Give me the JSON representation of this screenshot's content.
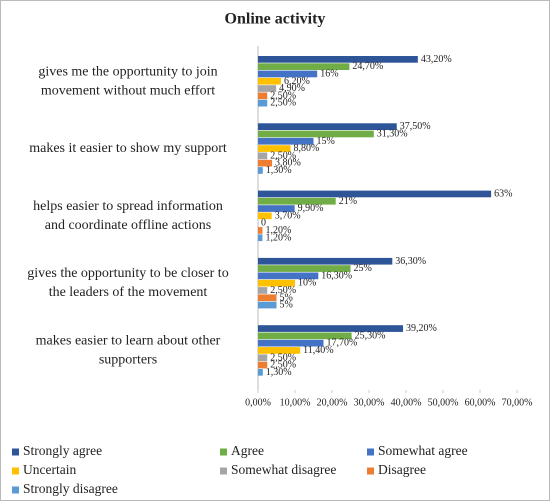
{
  "chart_data": {
    "type": "bar",
    "orientation": "horizontal",
    "title": "Online activity",
    "categories": [
      [
        "gives me the opportunity to join",
        "movement without much effort"
      ],
      [
        "makes it easier to show my support"
      ],
      [
        "helps easier to spread information",
        "and coordinate  offline actions"
      ],
      [
        "gives the opportunity to be closer to",
        "the leaders of the movement"
      ],
      [
        "makes easier to learn about other",
        "supporters"
      ]
    ],
    "series": [
      {
        "name": "Strongly agree",
        "color": "#2e5597",
        "values": [
          43.2,
          37.5,
          63,
          36.3,
          39.2
        ],
        "value_labels": [
          "43,20%",
          "37,50%",
          "63%",
          "36,30%",
          "39,20%"
        ]
      },
      {
        "name": "Agree",
        "color": "#70ad47",
        "values": [
          24.7,
          31.3,
          21,
          25,
          25.3
        ],
        "value_labels": [
          "24,70%",
          "31,30%",
          "21%",
          "25%",
          "25,30%"
        ]
      },
      {
        "name": "Somewhat agree",
        "color": "#4472c4",
        "values": [
          16,
          15,
          9.9,
          16.3,
          17.7
        ],
        "value_labels": [
          "16%",
          "15%",
          "9,90%",
          "16,30%",
          "17,70%"
        ]
      },
      {
        "name": "Uncertain",
        "color": "#ffc000",
        "values": [
          6.2,
          8.8,
          3.7,
          10,
          11.4
        ],
        "value_labels": [
          "6,20%",
          "8,80%",
          "3,70%",
          "10%",
          "11,40%"
        ]
      },
      {
        "name": "Somewhat disagree",
        "color": "#a5a5a5",
        "values": [
          4.9,
          2.5,
          0,
          2.5,
          2.5
        ],
        "value_labels": [
          "4,90%",
          "2,50%",
          "0",
          "2,50%",
          "2,50%"
        ]
      },
      {
        "name": "Disagree",
        "color": "#ed7d31",
        "values": [
          2.5,
          3.8,
          1.2,
          5,
          2.5
        ],
        "value_labels": [
          "2,50%",
          "3,80%",
          "1,20%",
          "5%",
          "2,50%"
        ]
      },
      {
        "name": "Strongly disagree",
        "color": "#5b9bd5",
        "values": [
          2.5,
          1.3,
          1.2,
          5,
          1.3
        ],
        "value_labels": [
          "2,50%",
          "1,30%",
          "1,20%",
          "5%",
          "1,30%"
        ]
      }
    ],
    "xlim": [
      0,
      70
    ],
    "xticks": [
      {
        "value": 0,
        "label": "0,00%"
      },
      {
        "value": 10,
        "label": "10,00%"
      },
      {
        "value": 20,
        "label": "20,00%"
      },
      {
        "value": 30,
        "label": "30,00%"
      },
      {
        "value": 40,
        "label": "40,00%"
      },
      {
        "value": 50,
        "label": "50,00%"
      },
      {
        "value": 60,
        "label": "60,00%"
      },
      {
        "value": 70,
        "label": "70,00%"
      }
    ],
    "legend": "bottom"
  }
}
